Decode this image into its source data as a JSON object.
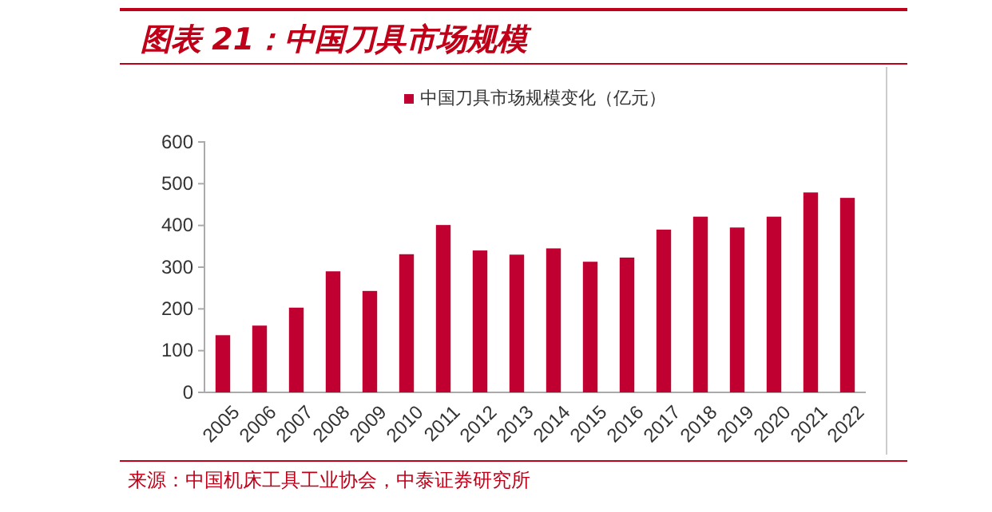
{
  "chart_data": {
    "type": "bar",
    "title": "图表 21：中国刀具市场规模",
    "categories": [
      "2005",
      "2006",
      "2007",
      "2008",
      "2009",
      "2010",
      "2011",
      "2012",
      "2013",
      "2014",
      "2015",
      "2016",
      "2017",
      "2018",
      "2019",
      "2020",
      "2021",
      "2022"
    ],
    "series": [
      {
        "name": "中国刀具市场规模变化（亿元）",
        "color": "#c00030",
        "values": [
          137,
          160,
          203,
          290,
          243,
          331,
          401,
          340,
          330,
          345,
          313,
          323,
          390,
          421,
          395,
          421,
          479,
          466
        ]
      }
    ],
    "ylim": [
      0,
      600
    ],
    "yticks": [
      0,
      100,
      200,
      300,
      400,
      500,
      600
    ],
    "grid": false,
    "legend": "top",
    "annotations": [
      "来源：中国机床工具工业协会，中泰证券研究所"
    ]
  }
}
